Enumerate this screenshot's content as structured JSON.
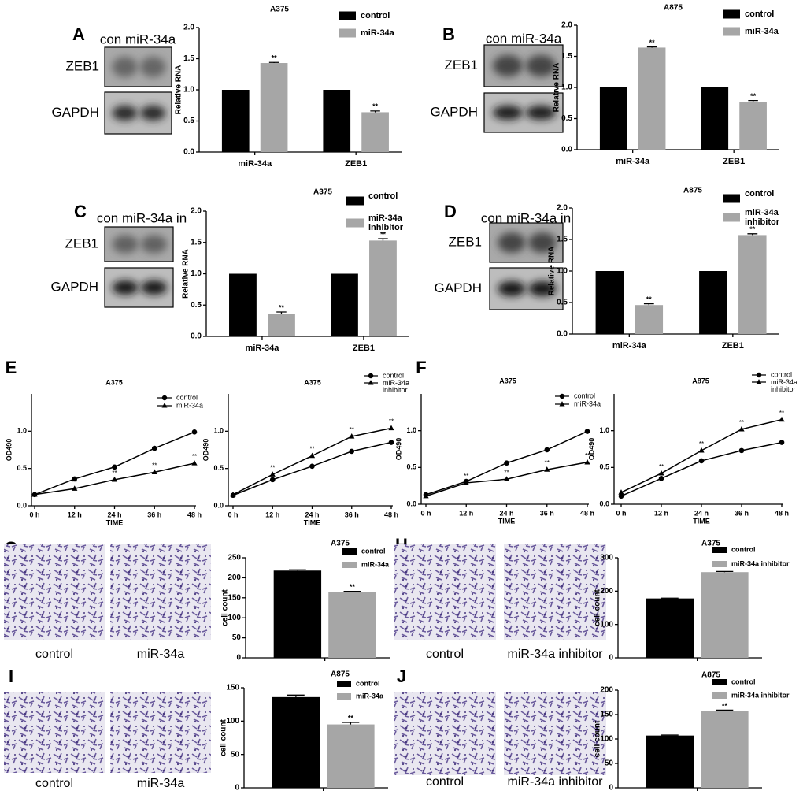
{
  "panels": [
    {
      "letter": "A",
      "header": "con miR-34a",
      "rows": [
        "ZEB1",
        "GAPDH"
      ]
    },
    {
      "letter": "B",
      "header": "con miR-34a",
      "rows": [
        "ZEB1",
        "GAPDH"
      ]
    },
    {
      "letter": "C",
      "header": "con miR-34a in",
      "rows": [
        "ZEB1",
        "GAPDH"
      ]
    },
    {
      "letter": "D",
      "header": "con miR-34a in",
      "rows": [
        "ZEB1",
        "GAPDH"
      ]
    },
    {
      "letter": "E"
    },
    {
      "letter": "F"
    },
    {
      "letter": "G",
      "captions": [
        "control",
        "miR-34a"
      ]
    },
    {
      "letter": "H",
      "captions": [
        "control",
        "miR-34a inhibitor"
      ]
    },
    {
      "letter": "I",
      "captions": [
        "control",
        "miR-34a"
      ]
    },
    {
      "letter": "J",
      "captions": [
        "control",
        "miR-34a inhibitor"
      ]
    }
  ],
  "chart_data": [
    {
      "type": "bar",
      "title": "A375",
      "ylabel": "Relative RNA",
      "categories": [
        "miR-34a",
        "ZEB1"
      ],
      "series": [
        {
          "name": "control",
          "color": "#000000",
          "values": [
            1.0,
            1.0
          ]
        },
        {
          "name": "miR-34a",
          "color": "#a6a6a6",
          "values": [
            1.43,
            0.64
          ],
          "errors": [
            0.01,
            0.02
          ],
          "significance": [
            "**",
            "**"
          ]
        }
      ],
      "ylim": [
        0,
        2.0
      ],
      "yticks": [
        {
          "value": 0,
          "label": "0.0"
        },
        {
          "value": 0.5,
          "label": "0.5"
        },
        {
          "value": 1.0,
          "label": "1.0"
        },
        {
          "value": 1.5,
          "label": "1.5"
        },
        {
          "value": 2.0,
          "label": "2.0"
        }
      ]
    },
    {
      "type": "bar",
      "title": "A875",
      "ylabel": "Relative RNA",
      "categories": [
        "miR-34a",
        "ZEB1"
      ],
      "series": [
        {
          "name": "control",
          "color": "#000000",
          "values": [
            1.0,
            1.0
          ]
        },
        {
          "name": "miR-34a",
          "color": "#a6a6a6",
          "values": [
            1.64,
            0.76
          ],
          "errors": [
            0.01,
            0.03
          ],
          "significance": [
            "**",
            "**"
          ]
        }
      ],
      "ylim": [
        0,
        2.0
      ],
      "yticks": [
        {
          "value": 0,
          "label": "0.0"
        },
        {
          "value": 0.5,
          "label": "0.5"
        },
        {
          "value": 1.0,
          "label": "1.0"
        },
        {
          "value": 1.5,
          "label": "1.5"
        },
        {
          "value": 2.0,
          "label": "2.0"
        }
      ]
    },
    {
      "type": "bar",
      "title": "A375",
      "ylabel": "Relative RNA",
      "categories": [
        "miR-34a",
        "ZEB1"
      ],
      "series": [
        {
          "name": "control",
          "color": "#000000",
          "values": [
            1.0,
            1.0
          ]
        },
        {
          "name": "miR-34a inhibitor",
          "color": "#a6a6a6",
          "values": [
            0.36,
            1.53
          ],
          "errors": [
            0.03,
            0.03
          ],
          "significance": [
            "**",
            "**"
          ]
        }
      ],
      "ylim": [
        0,
        2.0
      ],
      "yticks": [
        {
          "value": 0,
          "label": "0.0"
        },
        {
          "value": 0.5,
          "label": "0.5"
        },
        {
          "value": 1.0,
          "label": "1.0"
        },
        {
          "value": 1.5,
          "label": "1.5"
        },
        {
          "value": 2.0,
          "label": "2.0"
        }
      ]
    },
    {
      "type": "bar",
      "title": "A875",
      "ylabel": "Relative RNA",
      "categories": [
        "miR-34a",
        "ZEB1"
      ],
      "series": [
        {
          "name": "control",
          "color": "#000000",
          "values": [
            1.0,
            1.0
          ]
        },
        {
          "name": "miR-34a inhibitor",
          "color": "#a6a6a6",
          "values": [
            0.46,
            1.57
          ],
          "errors": [
            0.02,
            0.02
          ],
          "significance": [
            "**",
            "**"
          ]
        }
      ],
      "ylim": [
        0,
        2.0
      ],
      "yticks": [
        {
          "value": 0,
          "label": "0.0"
        },
        {
          "value": 0.5,
          "label": "0.5"
        },
        {
          "value": 1.0,
          "label": "1.0"
        },
        {
          "value": 1.5,
          "label": "1.5"
        },
        {
          "value": 2.0,
          "label": "2.0"
        }
      ]
    },
    {
      "type": "line",
      "title": "A375",
      "xlabel": "TIME",
      "ylabel": "OD490",
      "categories": [
        "0 h",
        "12 h",
        "24 h",
        "36 h",
        "48 h"
      ],
      "series": [
        {
          "name": "control",
          "color": "#000000",
          "marker": "circle",
          "values": [
            0.15,
            0.36,
            0.52,
            0.77,
            0.99
          ]
        },
        {
          "name": "miR-34a",
          "color": "#000000",
          "marker": "triangle",
          "values": [
            0.15,
            0.23,
            0.35,
            0.45,
            0.57
          ],
          "significance": [
            null,
            "**",
            "**",
            "**",
            "**"
          ]
        }
      ],
      "ylim": [
        0,
        1.5
      ],
      "yticks": [
        {
          "value": 0,
          "label": "0.0"
        },
        {
          "value": 0.5,
          "label": "0.5"
        },
        {
          "value": 1.0,
          "label": "1.0"
        }
      ]
    },
    {
      "type": "line",
      "title": "A375",
      "xlabel": "TIME",
      "ylabel": "OD490",
      "categories": [
        "0 h",
        "12 h",
        "24 h",
        "36 h",
        "48 h"
      ],
      "series": [
        {
          "name": "control",
          "color": "#000000",
          "marker": "circle",
          "values": [
            0.14,
            0.35,
            0.53,
            0.73,
            0.85
          ]
        },
        {
          "name": "miR-34a inhibitor",
          "color": "#000000",
          "marker": "triangle",
          "values": [
            0.15,
            0.42,
            0.67,
            0.93,
            1.04
          ],
          "significance": [
            null,
            "**",
            "**",
            "**",
            "**"
          ]
        }
      ],
      "ylim": [
        0,
        1.5
      ],
      "yticks": [
        {
          "value": 0,
          "label": "0.0"
        },
        {
          "value": 0.5,
          "label": "0.5"
        },
        {
          "value": 1.0,
          "label": "1.0"
        }
      ]
    },
    {
      "type": "line",
      "title": "A375",
      "xlabel": "TIME",
      "ylabel": "OD490",
      "categories": [
        "0 h",
        "12 h",
        "24 h",
        "36 h",
        "48 h"
      ],
      "series": [
        {
          "name": "control",
          "color": "#000000",
          "marker": "circle",
          "values": [
            0.13,
            0.31,
            0.56,
            0.74,
            0.99
          ]
        },
        {
          "name": "miR-34a",
          "color": "#000000",
          "marker": "triangle",
          "values": [
            0.11,
            0.29,
            0.34,
            0.47,
            0.57
          ],
          "significance": [
            null,
            "**",
            "**",
            "**",
            "**"
          ]
        }
      ],
      "ylim": [
        0,
        1.5
      ],
      "yticks": [
        {
          "value": 0,
          "label": "0.0"
        },
        {
          "value": 0.5,
          "label": "0.5"
        },
        {
          "value": 1.0,
          "label": "1.0"
        }
      ]
    },
    {
      "type": "line",
      "title": "A875",
      "xlabel": "TIME",
      "ylabel": "OD490",
      "categories": [
        "0 h",
        "12 h",
        "24 h",
        "36 h",
        "48 h"
      ],
      "series": [
        {
          "name": "control",
          "color": "#000000",
          "marker": "circle",
          "values": [
            0.11,
            0.35,
            0.59,
            0.73,
            0.84
          ]
        },
        {
          "name": "miR-34a inhibitor",
          "color": "#000000",
          "marker": "triangle",
          "values": [
            0.16,
            0.42,
            0.73,
            1.02,
            1.15
          ],
          "significance": [
            null,
            "**",
            "**",
            "**",
            "**"
          ]
        }
      ],
      "ylim": [
        0,
        1.5
      ],
      "yticks": [
        {
          "value": 0,
          "label": "0.0"
        },
        {
          "value": 0.5,
          "label": "0.5"
        },
        {
          "value": 1.0,
          "label": "1.0"
        }
      ]
    },
    {
      "type": "bar",
      "title": "A375",
      "ylabel": "cell count",
      "categories": [
        null
      ],
      "series": [
        {
          "name": "control",
          "color": "#000000",
          "values": [
            218
          ],
          "errors": [
            2
          ]
        },
        {
          "name": "miR-34a",
          "color": "#a6a6a6",
          "values": [
            164
          ],
          "errors": [
            2
          ],
          "significance": [
            "**"
          ]
        }
      ],
      "ylim": [
        0,
        250
      ],
      "yticks": [
        0,
        50,
        100,
        150,
        200,
        250
      ]
    },
    {
      "type": "bar",
      "title": "A375",
      "ylabel": "cell count",
      "categories": [
        null
      ],
      "series": [
        {
          "name": "control",
          "color": "#000000",
          "values": [
            178
          ],
          "errors": [
            1
          ]
        },
        {
          "name": "miR-34a inhibitor",
          "color": "#a6a6a6",
          "values": [
            257
          ],
          "errors": [
            2
          ],
          "significance": [
            "**"
          ]
        }
      ],
      "ylim": [
        0,
        300
      ],
      "yticks": [
        0,
        100,
        200,
        300
      ]
    },
    {
      "type": "bar",
      "title": "A875",
      "ylabel": "cell count",
      "categories": [
        null
      ],
      "series": [
        {
          "name": "control",
          "color": "#000000",
          "values": [
            136
          ],
          "errors": [
            3
          ]
        },
        {
          "name": "miR-34a",
          "color": "#a6a6a6",
          "values": [
            95
          ],
          "errors": [
            3
          ],
          "significance": [
            "**"
          ]
        }
      ],
      "ylim": [
        0,
        150
      ],
      "yticks": [
        0,
        50,
        100,
        150
      ]
    },
    {
      "type": "bar",
      "title": "A875",
      "ylabel": "cell count",
      "categories": [
        null
      ],
      "series": [
        {
          "name": "control",
          "color": "#000000",
          "values": [
            107
          ],
          "errors": [
            1
          ]
        },
        {
          "name": "miR-34a inhibitor",
          "color": "#a6a6a6",
          "values": [
            157
          ],
          "errors": [
            2
          ],
          "significance": [
            "**"
          ]
        }
      ],
      "ylim": [
        0,
        200
      ],
      "yticks": [
        0,
        50,
        100,
        150,
        200
      ]
    }
  ]
}
